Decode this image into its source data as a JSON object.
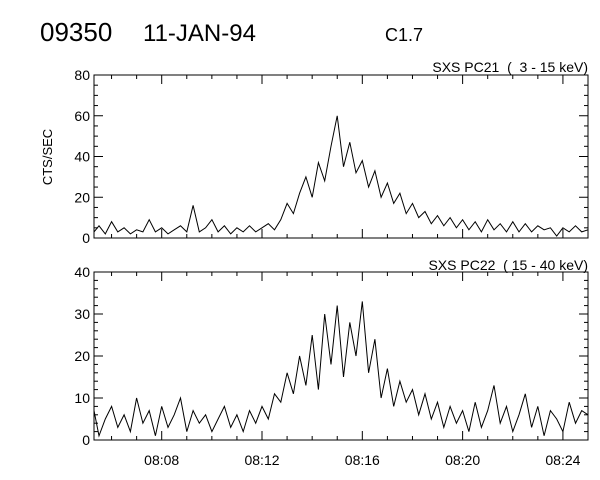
{
  "header": {
    "event_id": "09350",
    "date": "11-JAN-94",
    "goes_class": "C1.7"
  },
  "chart_data": [
    {
      "type": "line",
      "title": "SXS PC21  (  3 - 15 keV)",
      "ylabel": "CTS/SEC",
      "xlabel": "",
      "ylim": [
        0,
        80
      ],
      "yticks": [
        "0",
        "20",
        "40",
        "60",
        "80"
      ],
      "xlim": [
        "08:05:18",
        "08:25:00"
      ],
      "xticks": [
        "08:08",
        "08:12",
        "08:16",
        "08:20",
        "08:24"
      ],
      "show_xtick_labels": false,
      "grid": false,
      "color": "#000000",
      "x_start": "08:05:15",
      "x_step_seconds": 15,
      "values": [
        3,
        6,
        2,
        8,
        3,
        5,
        2,
        4,
        3,
        9,
        3,
        5,
        2,
        4,
        6,
        3,
        16,
        3,
        5,
        9,
        3,
        6,
        2,
        5,
        3,
        6,
        3,
        5,
        7,
        4,
        9,
        17,
        12,
        22,
        30,
        20,
        37,
        28,
        45,
        60,
        35,
        47,
        32,
        38,
        25,
        33,
        20,
        27,
        17,
        22,
        12,
        17,
        10,
        13,
        7,
        11,
        6,
        10,
        5,
        9,
        4,
        8,
        3,
        9,
        4,
        7,
        3,
        8,
        3,
        7,
        3,
        6,
        4,
        5,
        1,
        5,
        3,
        6,
        3,
        4
      ]
    },
    {
      "type": "line",
      "title": "SXS PC22  ( 15 - 40 keV)",
      "ylabel": "",
      "xlabel": "",
      "ylim": [
        0,
        40
      ],
      "yticks": [
        "0",
        "10",
        "20",
        "30",
        "40"
      ],
      "xlim": [
        "08:05:18",
        "08:25:00"
      ],
      "xticks": [
        "08:08",
        "08:12",
        "08:16",
        "08:20",
        "08:24"
      ],
      "show_xtick_labels": true,
      "grid": false,
      "color": "#000000",
      "x_start": "08:05:15",
      "x_step_seconds": 15,
      "values": [
        7,
        1,
        5,
        8,
        3,
        6,
        2,
        10,
        4,
        7,
        1,
        8,
        3,
        6,
        10,
        2,
        7,
        4,
        6,
        2,
        5,
        8,
        3,
        6,
        2,
        7,
        4,
        8,
        5,
        11,
        9,
        16,
        11,
        20,
        13,
        25,
        12,
        30,
        18,
        32,
        15,
        28,
        20,
        33,
        16,
        24,
        10,
        17,
        8,
        14,
        9,
        12,
        6,
        11,
        5,
        9,
        3,
        8,
        4,
        7,
        2,
        9,
        3,
        7,
        13,
        4,
        8,
        2,
        6,
        11,
        3,
        8,
        1,
        7,
        5,
        2,
        9,
        4,
        7,
        6
      ]
    }
  ]
}
